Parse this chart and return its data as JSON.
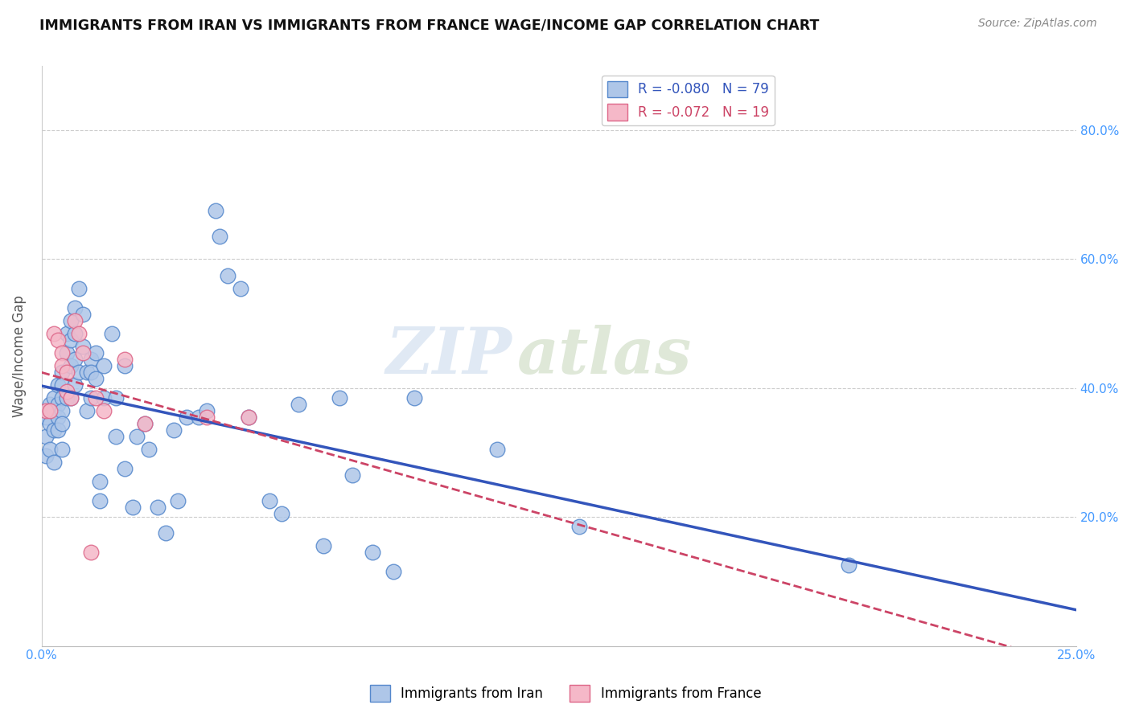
{
  "title": "IMMIGRANTS FROM IRAN VS IMMIGRANTS FROM FRANCE WAGE/INCOME GAP CORRELATION CHART",
  "source": "Source: ZipAtlas.com",
  "ylabel": "Wage/Income Gap",
  "legend_iran": "Immigrants from Iran",
  "legend_france": "Immigrants from France",
  "R_iran": -0.08,
  "N_iran": 79,
  "R_france": -0.072,
  "N_france": 19,
  "color_iran": "#aec6e8",
  "color_france": "#f5b8c8",
  "edge_iran": "#5588cc",
  "edge_france": "#dd6688",
  "line_iran": "#3355bb",
  "line_france": "#cc4466",
  "watermark_zip": "ZIP",
  "watermark_atlas": "atlas",
  "xlim": [
    0.0,
    0.25
  ],
  "ylim": [
    0.0,
    0.9
  ],
  "iran_x": [
    0.001,
    0.001,
    0.001,
    0.002,
    0.002,
    0.002,
    0.003,
    0.003,
    0.003,
    0.003,
    0.004,
    0.004,
    0.004,
    0.004,
    0.005,
    0.005,
    0.005,
    0.005,
    0.005,
    0.005,
    0.006,
    0.006,
    0.006,
    0.007,
    0.007,
    0.007,
    0.007,
    0.008,
    0.008,
    0.008,
    0.008,
    0.009,
    0.009,
    0.01,
    0.01,
    0.011,
    0.011,
    0.012,
    0.012,
    0.012,
    0.013,
    0.013,
    0.014,
    0.014,
    0.015,
    0.015,
    0.017,
    0.018,
    0.018,
    0.02,
    0.02,
    0.022,
    0.023,
    0.025,
    0.026,
    0.028,
    0.03,
    0.032,
    0.033,
    0.035,
    0.038,
    0.04,
    0.042,
    0.043,
    0.045,
    0.048,
    0.05,
    0.055,
    0.058,
    0.062,
    0.068,
    0.072,
    0.075,
    0.08,
    0.085,
    0.09,
    0.11,
    0.13,
    0.195
  ],
  "iran_y": [
    0.355,
    0.325,
    0.295,
    0.375,
    0.345,
    0.305,
    0.385,
    0.365,
    0.335,
    0.285,
    0.405,
    0.375,
    0.355,
    0.335,
    0.425,
    0.405,
    0.385,
    0.365,
    0.345,
    0.305,
    0.485,
    0.455,
    0.385,
    0.505,
    0.475,
    0.435,
    0.385,
    0.525,
    0.485,
    0.445,
    0.405,
    0.555,
    0.425,
    0.515,
    0.465,
    0.425,
    0.365,
    0.445,
    0.425,
    0.385,
    0.455,
    0.415,
    0.255,
    0.225,
    0.435,
    0.385,
    0.485,
    0.385,
    0.325,
    0.435,
    0.275,
    0.215,
    0.325,
    0.345,
    0.305,
    0.215,
    0.175,
    0.335,
    0.225,
    0.355,
    0.355,
    0.365,
    0.675,
    0.635,
    0.575,
    0.555,
    0.355,
    0.225,
    0.205,
    0.375,
    0.155,
    0.385,
    0.265,
    0.145,
    0.115,
    0.385,
    0.305,
    0.185,
    0.125
  ],
  "france_x": [
    0.001,
    0.002,
    0.003,
    0.004,
    0.005,
    0.005,
    0.006,
    0.006,
    0.007,
    0.008,
    0.009,
    0.01,
    0.012,
    0.013,
    0.015,
    0.02,
    0.025,
    0.04,
    0.05
  ],
  "france_y": [
    0.365,
    0.365,
    0.485,
    0.475,
    0.455,
    0.435,
    0.425,
    0.395,
    0.385,
    0.505,
    0.485,
    0.455,
    0.145,
    0.385,
    0.365,
    0.445,
    0.345,
    0.355,
    0.355
  ]
}
